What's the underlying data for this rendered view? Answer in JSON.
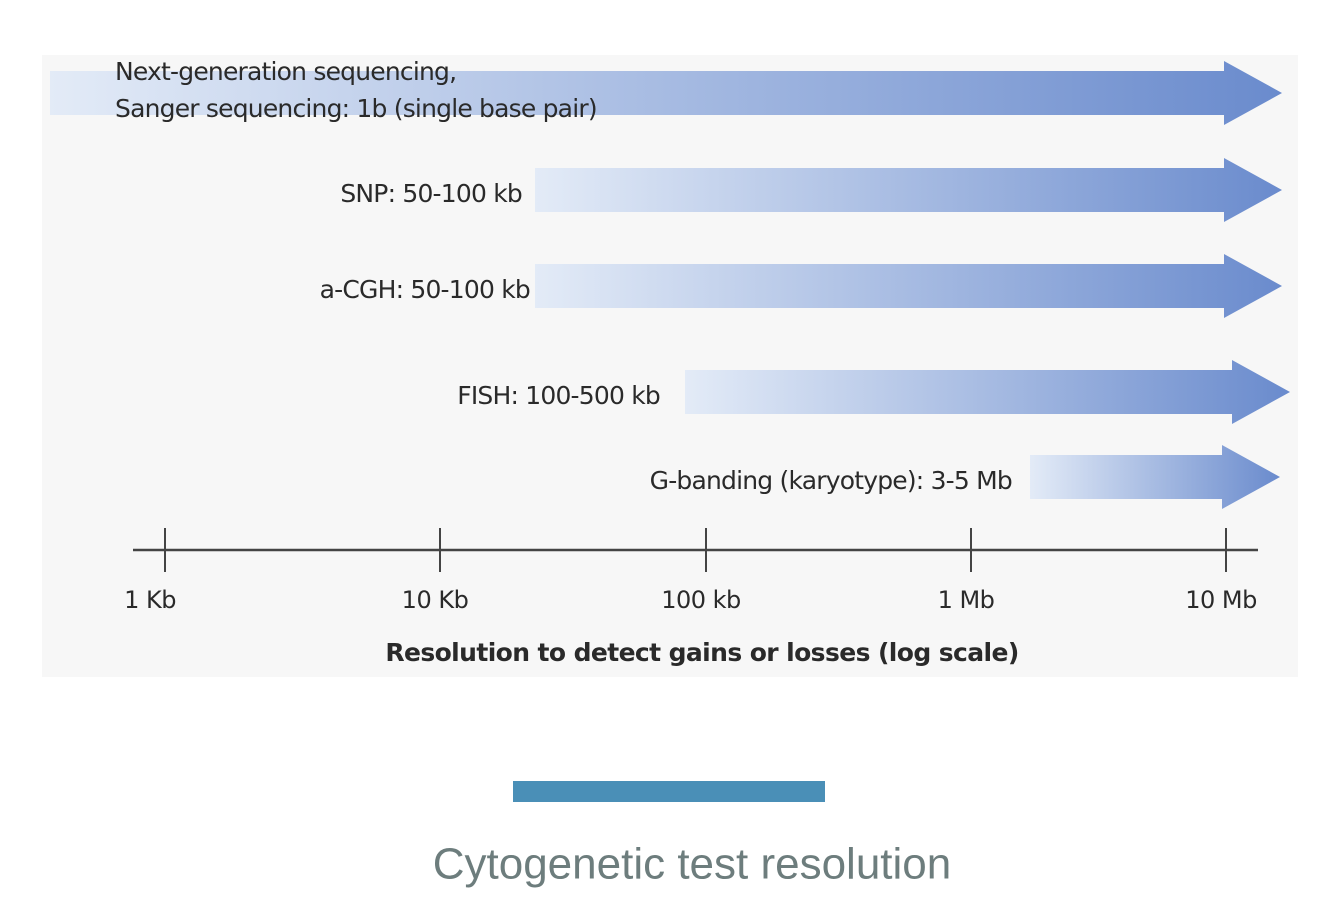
{
  "diagram": {
    "arrows": [
      {
        "lines": [
          "Next-generation sequencing,",
          "Sanger sequencing: 1b (single base pair)"
        ]
      },
      {
        "lines": [
          "SNP: 50-100 kb"
        ]
      },
      {
        "lines": [
          "a-CGH: 50-100 kb"
        ]
      },
      {
        "lines": [
          "FISH: 100-500 kb"
        ]
      },
      {
        "lines": [
          "G-banding (karyotype): 3-5 Mb"
        ]
      }
    ],
    "axis": {
      "ticks": [
        "1 Kb",
        "10 Kb",
        "100 kb",
        "1 Mb",
        "10 Mb"
      ],
      "title": "Resolution to detect gains or losses (log scale)"
    }
  },
  "caption": "Cytogenetic test resolution"
}
